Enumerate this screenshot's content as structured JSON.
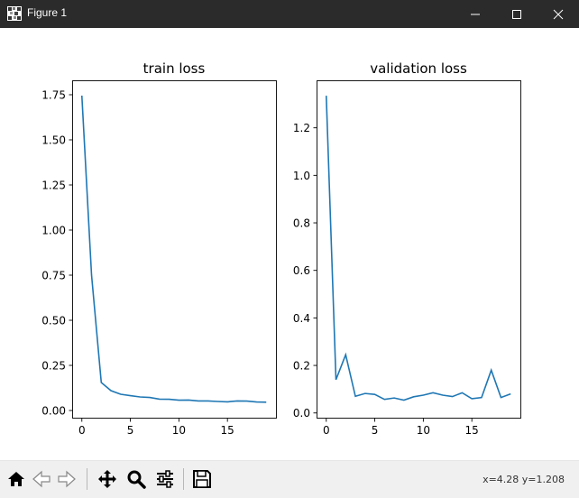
{
  "window": {
    "title": "Figure 1",
    "icons": {
      "app": "figure-app-icon",
      "minimize": "minimize-icon",
      "maximize": "maximize-icon",
      "close": "close-icon"
    }
  },
  "toolbar": {
    "buttons": [
      {
        "name": "home",
        "icon": "home-icon"
      },
      {
        "name": "back",
        "icon": "back-arrow-icon"
      },
      {
        "name": "forward",
        "icon": "forward-arrow-icon"
      },
      {
        "name": "pan",
        "icon": "pan-move-icon"
      },
      {
        "name": "zoom",
        "icon": "zoom-magnifier-icon"
      },
      {
        "name": "configure-subplots",
        "icon": "sliders-icon"
      },
      {
        "name": "save",
        "icon": "save-floppy-icon"
      }
    ],
    "coordinates": "x=4.28 y=1.208"
  },
  "colors": {
    "line": "#1f77b4",
    "titlebar": "#2b2b2b",
    "toolbar": "#f0f0f0"
  },
  "chart_data": [
    {
      "type": "line",
      "title": "train loss",
      "xlabel": "",
      "ylabel": "",
      "xlim": [
        -1,
        20
      ],
      "ylim": [
        -0.04,
        1.83
      ],
      "xticks": [
        0,
        5,
        10,
        15
      ],
      "yticks": [
        0.0,
        0.25,
        0.5,
        0.75,
        1.0,
        1.25,
        1.5,
        1.75
      ],
      "ytick_labels": [
        "0.00",
        "0.25",
        "0.50",
        "0.75",
        "1.00",
        "1.25",
        "1.50",
        "1.75"
      ],
      "x": [
        0,
        1,
        2,
        3,
        4,
        5,
        6,
        7,
        8,
        9,
        10,
        11,
        12,
        13,
        14,
        15,
        16,
        17,
        18,
        19
      ],
      "series": [
        {
          "values": [
            1.745,
            0.75,
            0.155,
            0.11,
            0.09,
            0.082,
            0.075,
            0.072,
            0.063,
            0.062,
            0.057,
            0.058,
            0.053,
            0.053,
            0.05,
            0.048,
            0.053,
            0.052,
            0.047,
            0.046
          ]
        }
      ]
    },
    {
      "type": "line",
      "title": "validation loss",
      "xlabel": "",
      "ylabel": "",
      "xlim": [
        -1,
        20
      ],
      "ylim": [
        -0.02,
        1.4
      ],
      "xticks": [
        0,
        5,
        10,
        15
      ],
      "yticks": [
        0.0,
        0.2,
        0.4,
        0.6,
        0.8,
        1.0,
        1.2
      ],
      "ytick_labels": [
        "0.0",
        "0.2",
        "0.4",
        "0.6",
        "0.8",
        "1.0",
        "1.2"
      ],
      "x": [
        0,
        1,
        2,
        3,
        4,
        5,
        6,
        7,
        8,
        9,
        10,
        11,
        12,
        13,
        14,
        15,
        16,
        17,
        18,
        19
      ],
      "series": [
        {
          "values": [
            1.335,
            0.14,
            0.245,
            0.07,
            0.082,
            0.078,
            0.057,
            0.063,
            0.054,
            0.068,
            0.075,
            0.085,
            0.075,
            0.069,
            0.085,
            0.06,
            0.065,
            0.18,
            0.065,
            0.08
          ]
        }
      ]
    }
  ]
}
